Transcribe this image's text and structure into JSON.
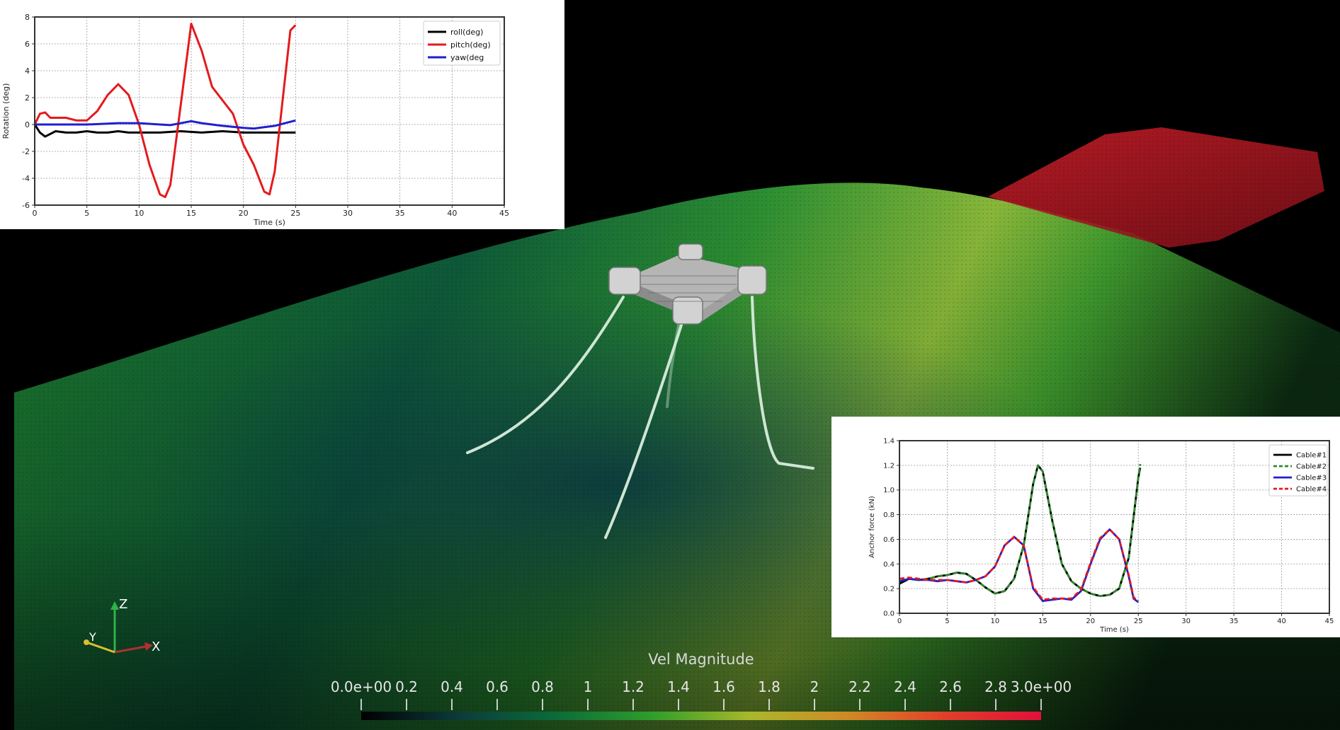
{
  "chart_data": [
    {
      "type": "line",
      "xlabel": "Time (s)",
      "ylabel": "Rotation (deg)",
      "xlim": [
        0,
        45
      ],
      "ylim": [
        -6,
        8
      ],
      "xticks": [
        0,
        5,
        10,
        15,
        20,
        25,
        30,
        35,
        40,
        45
      ],
      "yticks": [
        -6,
        -4,
        -2,
        0,
        2,
        4,
        6,
        8
      ],
      "grid": true,
      "legend_position": "top-right",
      "series": [
        {
          "name": "roll(deg)",
          "color": "#000000",
          "x": [
            0,
            0.5,
            1,
            1.5,
            2,
            3,
            4,
            5,
            6,
            7,
            8,
            9,
            10,
            12,
            14,
            16,
            18,
            20,
            22,
            24,
            25
          ],
          "y": [
            0,
            -0.6,
            -0.9,
            -0.7,
            -0.5,
            -0.6,
            -0.6,
            -0.5,
            -0.6,
            -0.6,
            -0.5,
            -0.6,
            -0.6,
            -0.6,
            -0.5,
            -0.6,
            -0.5,
            -0.6,
            -0.6,
            -0.6,
            -0.6
          ]
        },
        {
          "name": "pitch(deg)",
          "color": "#e41a1c",
          "x": [
            0,
            0.5,
            1,
            1.5,
            2,
            3,
            4,
            5,
            6,
            7,
            8,
            9,
            10,
            11,
            12,
            12.5,
            13,
            14,
            15,
            16,
            17,
            18,
            19,
            20,
            21,
            22,
            22.5,
            23,
            24,
            24.5,
            25
          ],
          "y": [
            0,
            0.8,
            0.9,
            0.5,
            0.5,
            0.5,
            0.3,
            0.3,
            1.0,
            2.2,
            3.0,
            2.2,
            0,
            -3.0,
            -5.2,
            -5.4,
            -4.5,
            1.5,
            7.5,
            5.5,
            2.8,
            1.8,
            0.8,
            -1.5,
            -3.0,
            -5.0,
            -5.2,
            -3.5,
            3.5,
            7.0,
            7.4
          ]
        },
        {
          "name": "yaw(deg",
          "color": "#1f1fd0",
          "x": [
            0,
            5,
            8,
            10,
            12,
            13,
            14,
            15,
            16,
            18,
            20,
            21,
            22,
            23,
            24,
            25
          ],
          "y": [
            0,
            0,
            0.1,
            0.1,
            0.0,
            -0.05,
            0.1,
            0.25,
            0.1,
            -0.1,
            -0.25,
            -0.3,
            -0.2,
            -0.1,
            0.1,
            0.3
          ]
        }
      ]
    },
    {
      "type": "line",
      "xlabel": "Time (s)",
      "ylabel": "Anchor force (kN)",
      "xlim": [
        0,
        45
      ],
      "ylim": [
        0.0,
        1.4
      ],
      "xticks": [
        0,
        5,
        10,
        15,
        20,
        25,
        30,
        35,
        40,
        45
      ],
      "yticks": [
        0.0,
        0.2,
        0.4,
        0.6,
        0.8,
        1.0,
        1.2,
        1.4
      ],
      "grid": true,
      "legend_position": "top-right",
      "series": [
        {
          "name": "Cable#1",
          "color": "#000000",
          "dash": "solid",
          "x": [
            0,
            1,
            2,
            3,
            4,
            5,
            6,
            7,
            8,
            9,
            10,
            11,
            12,
            13,
            14,
            14.5,
            15,
            16,
            17,
            18,
            19,
            20,
            21,
            22,
            23,
            24,
            25,
            25.2
          ],
          "y": [
            0.24,
            0.28,
            0.27,
            0.28,
            0.3,
            0.31,
            0.33,
            0.32,
            0.27,
            0.21,
            0.16,
            0.18,
            0.28,
            0.55,
            1.05,
            1.2,
            1.15,
            0.75,
            0.4,
            0.26,
            0.2,
            0.16,
            0.14,
            0.15,
            0.2,
            0.45,
            1.1,
            1.18
          ]
        },
        {
          "name": "Cable#2",
          "color": "#2e8b2e",
          "dash": "dashed",
          "x": [
            0,
            1,
            2,
            3,
            4,
            5,
            6,
            7,
            8,
            9,
            10,
            11,
            12,
            13,
            14,
            14.5,
            15,
            16,
            17,
            18,
            19,
            20,
            21,
            22,
            23,
            24,
            25,
            25.2
          ],
          "y": [
            0.26,
            0.28,
            0.27,
            0.28,
            0.3,
            0.31,
            0.33,
            0.32,
            0.27,
            0.21,
            0.16,
            0.18,
            0.28,
            0.55,
            1.05,
            1.2,
            1.15,
            0.75,
            0.4,
            0.26,
            0.2,
            0.16,
            0.14,
            0.15,
            0.2,
            0.45,
            1.1,
            1.21
          ]
        },
        {
          "name": "Cable#3",
          "color": "#1f1fd0",
          "dash": "solid",
          "x": [
            0,
            1,
            2,
            3,
            4,
            5,
            6,
            7,
            8,
            9,
            10,
            11,
            12,
            13,
            14,
            15,
            16,
            17,
            18,
            19,
            20,
            21,
            22,
            23,
            24,
            24.5,
            25
          ],
          "y": [
            0.26,
            0.28,
            0.27,
            0.27,
            0.26,
            0.27,
            0.26,
            0.25,
            0.27,
            0.3,
            0.38,
            0.55,
            0.62,
            0.55,
            0.2,
            0.1,
            0.11,
            0.12,
            0.11,
            0.18,
            0.4,
            0.6,
            0.68,
            0.6,
            0.3,
            0.12,
            0.09
          ]
        },
        {
          "name": "Cable#4",
          "color": "#e41a1c",
          "dash": "dashed",
          "x": [
            0,
            1,
            2,
            3,
            4,
            5,
            6,
            7,
            8,
            9,
            10,
            11,
            12,
            13,
            14,
            15,
            16,
            17,
            18,
            19,
            20,
            21,
            22,
            23,
            24,
            24.5,
            25
          ],
          "y": [
            0.28,
            0.29,
            0.28,
            0.27,
            0.27,
            0.27,
            0.26,
            0.25,
            0.27,
            0.3,
            0.38,
            0.55,
            0.62,
            0.55,
            0.21,
            0.11,
            0.12,
            0.12,
            0.12,
            0.19,
            0.41,
            0.61,
            0.68,
            0.6,
            0.31,
            0.13,
            0.1
          ]
        }
      ]
    }
  ],
  "colorbar": {
    "title": "Vel Magnitude",
    "tick_labels": [
      "0.0e+00",
      "0.2",
      "0.4",
      "0.6",
      "0.8",
      "1",
      "1.2",
      "1.4",
      "1.6",
      "1.8",
      "2",
      "2.2",
      "2.4",
      "2.6",
      "2.8",
      "3.0e+00"
    ],
    "range": [
      0,
      3
    ],
    "colors": [
      "#000000",
      "#0d3a3a",
      "#0b6b3a",
      "#2f9e2a",
      "#a9b82a",
      "#d08a26",
      "#e0402a",
      "#e0103a"
    ]
  },
  "axes_triad": {
    "z": "Z",
    "y": "Y",
    "x": "X"
  }
}
